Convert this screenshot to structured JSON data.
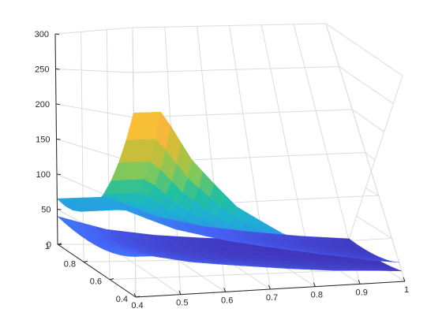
{
  "chart_data": {
    "type": "surface",
    "title": "",
    "xlabel": "",
    "ylabel": "",
    "zlabel": "",
    "view": "3d-perspective",
    "grid": true,
    "colormap": "parula",
    "colormap_stops": [
      "#3e26a8",
      "#4662f7",
      "#2d96e8",
      "#1cb2d1",
      "#23c09e",
      "#80c85c",
      "#c7be3a",
      "#f7b73b",
      "#f9e21d"
    ],
    "xlim": [
      0.4,
      1
    ],
    "ylim": [
      0.4,
      1
    ],
    "zlim": [
      0,
      300
    ],
    "x_ticks": [
      "0.4",
      "0.5",
      "0.6",
      "0.7",
      "0.8",
      "0.9",
      "1"
    ],
    "y_ticks": [
      "0.4",
      "0.6",
      "0.8",
      "1"
    ],
    "z_ticks": [
      "0",
      "50",
      "100",
      "150",
      "200",
      "250",
      "300"
    ],
    "surfaces": [
      {
        "description": "upper surface",
        "edge_y1_vs_x": [
          [
            0.4,
            65
          ],
          [
            0.5,
            70
          ],
          [
            0.6,
            42
          ],
          [
            0.7,
            28
          ],
          [
            0.8,
            20
          ],
          [
            0.9,
            14
          ],
          [
            1.0,
            10
          ]
        ],
        "ridge_y0_vs_x": [
          [
            0.48,
            205
          ],
          [
            0.55,
            150
          ],
          [
            0.65,
            95
          ],
          [
            0.75,
            62
          ],
          [
            0.85,
            40
          ],
          [
            0.95,
            26
          ],
          [
            1.0,
            22
          ]
        ]
      },
      {
        "description": "lower surface",
        "edge_y1_vs_x": [
          [
            0.4,
            40
          ],
          [
            0.5,
            22
          ],
          [
            0.6,
            14
          ],
          [
            0.7,
            10
          ],
          [
            0.8,
            8
          ],
          [
            0.9,
            6
          ],
          [
            1.0,
            5
          ]
        ],
        "ridge_y0_vs_x": [
          [
            0.48,
            45
          ],
          [
            0.55,
            35
          ],
          [
            0.65,
            28
          ],
          [
            0.75,
            22
          ],
          [
            0.85,
            17
          ],
          [
            0.95,
            14
          ],
          [
            1.0,
            12
          ]
        ]
      }
    ]
  }
}
